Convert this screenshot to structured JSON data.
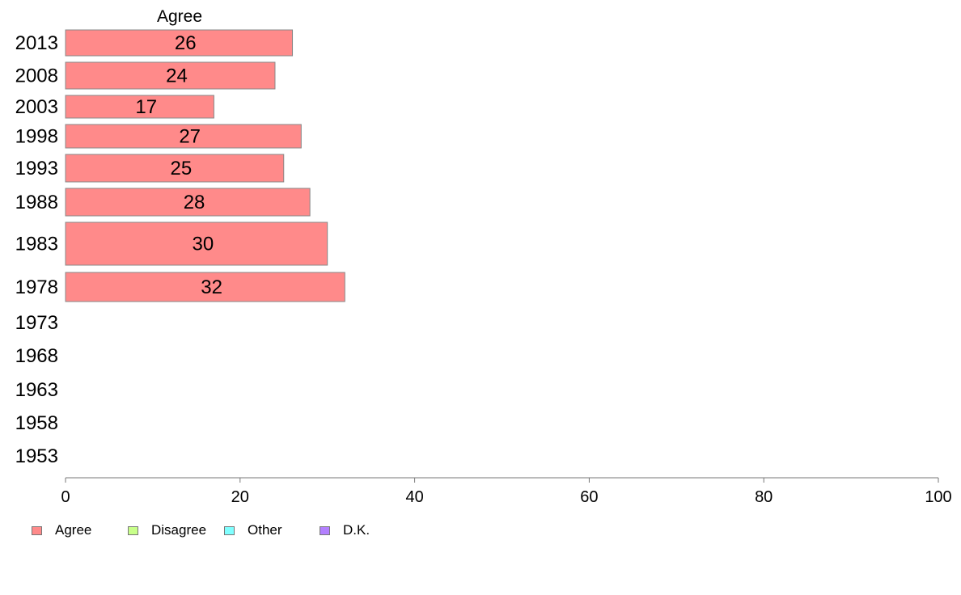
{
  "chart_data": {
    "type": "bar",
    "orientation": "horizontal",
    "column_header": "Agree",
    "categories": [
      "2013",
      "2008",
      "2003",
      "1998",
      "1993",
      "1988",
      "1983",
      "1978",
      "1973",
      "1968",
      "1963",
      "1958",
      "1953"
    ],
    "series": [
      {
        "name": "Agree",
        "color": "#ff8a8a",
        "values": [
          26,
          24,
          17,
          27,
          25,
          28,
          30,
          32,
          null,
          null,
          null,
          null,
          null
        ]
      }
    ],
    "xlim": [
      0,
      100
    ],
    "xticks": [
      0,
      20,
      40,
      60,
      80,
      100
    ],
    "grid": false,
    "legend": {
      "position": "bottom-left",
      "items": [
        {
          "label": "Agree",
          "color": "#ff8a8a"
        },
        {
          "label": "Disagree",
          "color": "#c8ff8a"
        },
        {
          "label": "Other",
          "color": "#80ffff"
        },
        {
          "label": "D.K.",
          "color": "#b380ff"
        }
      ]
    }
  }
}
